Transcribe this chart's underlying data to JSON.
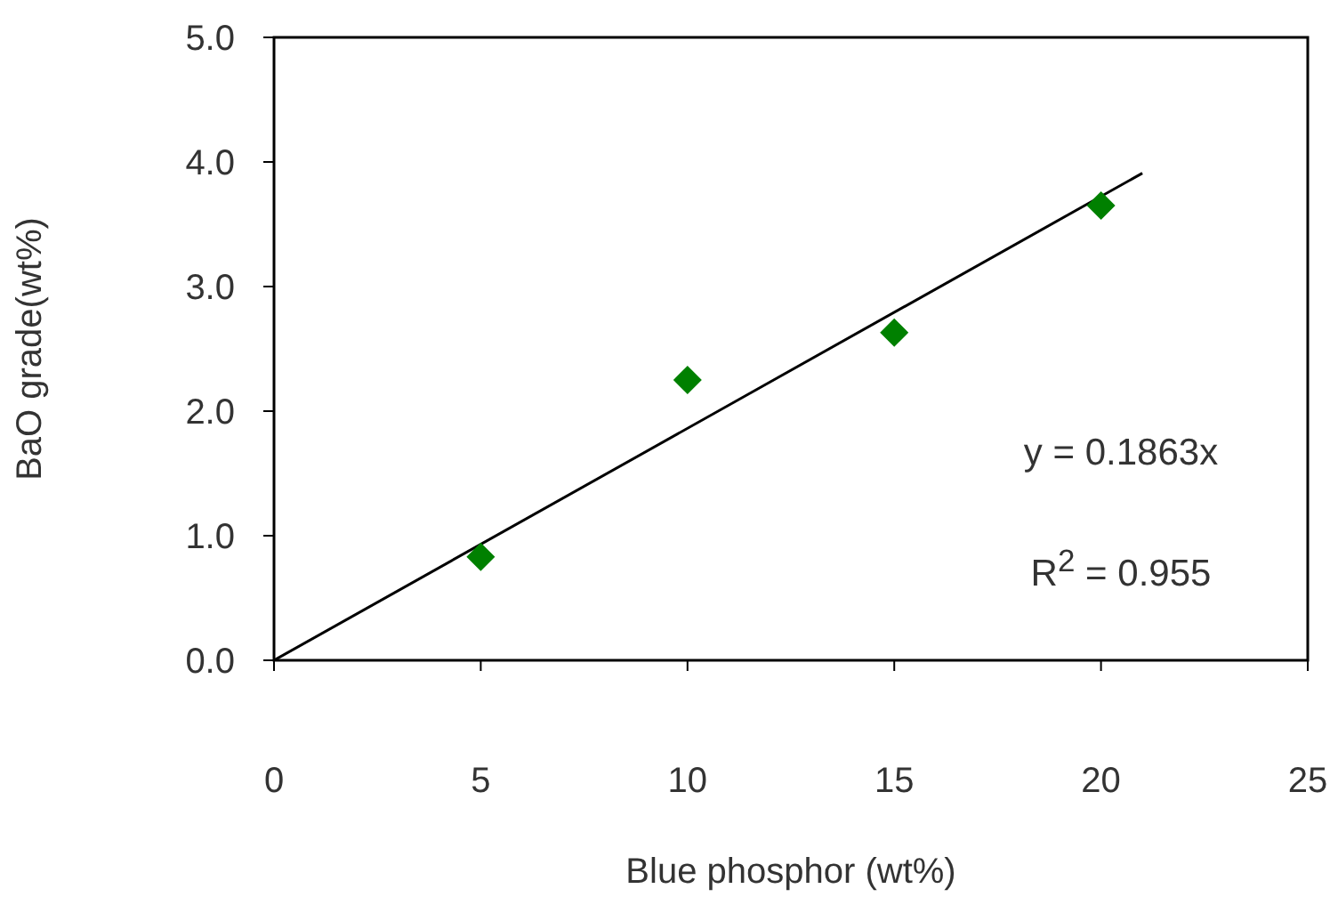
{
  "chart_data": {
    "type": "scatter",
    "xlabel": "Blue phosphor (wt%)",
    "ylabel": "BaO grade(wt%)",
    "x": [
      5,
      10,
      15,
      20
    ],
    "series": [
      {
        "color": "#008000",
        "values": [
          0.83,
          2.25,
          2.63,
          3.65
        ],
        "marker": "diamond"
      },
      {
        "type": "line",
        "color": "#000000",
        "x": [
          0,
          21
        ],
        "values": [
          0,
          3.91
        ],
        "marker": "none",
        "line_style": "solid"
      }
    ],
    "xlim": [
      0,
      25
    ],
    "xticks": [
      0,
      5,
      10,
      15,
      20,
      25
    ],
    "ylim": [
      0,
      5
    ],
    "yticks": [
      {
        "value": 0,
        "label": "0.0"
      },
      {
        "value": 1,
        "label": "1.0"
      },
      {
        "value": 2,
        "label": "2.0"
      },
      {
        "value": 3,
        "label": "3.0"
      },
      {
        "value": 4,
        "label": "4.0"
      },
      {
        "value": 5,
        "label": "5.0"
      }
    ],
    "annotations": [
      "y = 0.1863x",
      "R$^{2}$ = 0.955"
    ],
    "grid": false,
    "legend": false
  }
}
